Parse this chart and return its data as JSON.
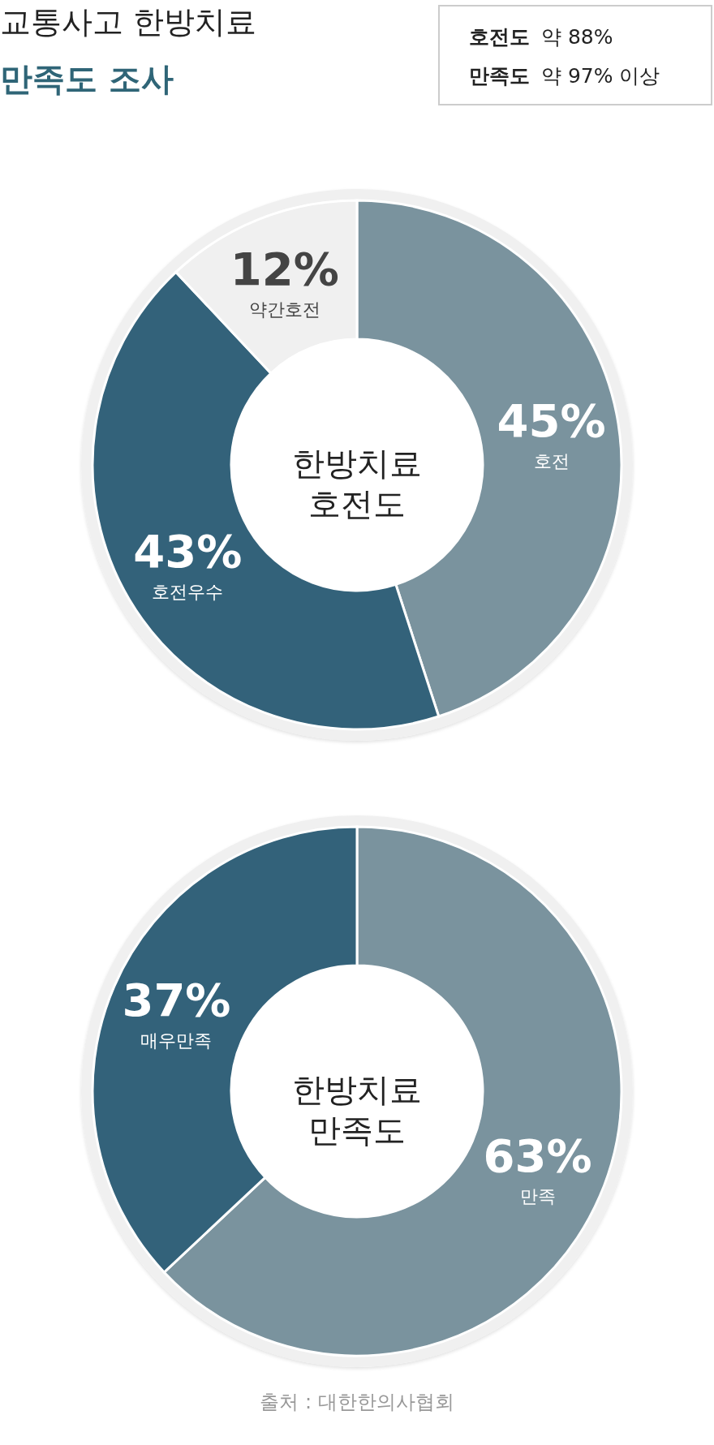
{
  "chart_data": [
    {
      "type": "donut",
      "title": "교통사고 한방치료",
      "subtitle": "만족도 조사",
      "categories": [
        "호전",
        "호전우수",
        "약간호전"
      ],
      "values": [
        45,
        43,
        12
      ],
      "colors": [
        "#7a939e",
        "#33627a",
        "#f0f0f0"
      ],
      "value_labels": [
        "45%",
        "43%",
        "12%"
      ],
      "annotations": [
        "한방치료\n호전도",
        "호전도 약 88%",
        "만족도 약 97% 이상"
      ]
    },
    {
      "type": "donut",
      "categories": [
        "만족",
        "매우만족"
      ],
      "values": [
        63,
        37
      ],
      "colors": [
        "#7a939e",
        "#33627a"
      ],
      "value_labels": [
        "63%",
        "37%"
      ],
      "annotations": [
        "한방치료\n만족도",
        "출처 : 대한한의사협회"
      ]
    }
  ]
}
